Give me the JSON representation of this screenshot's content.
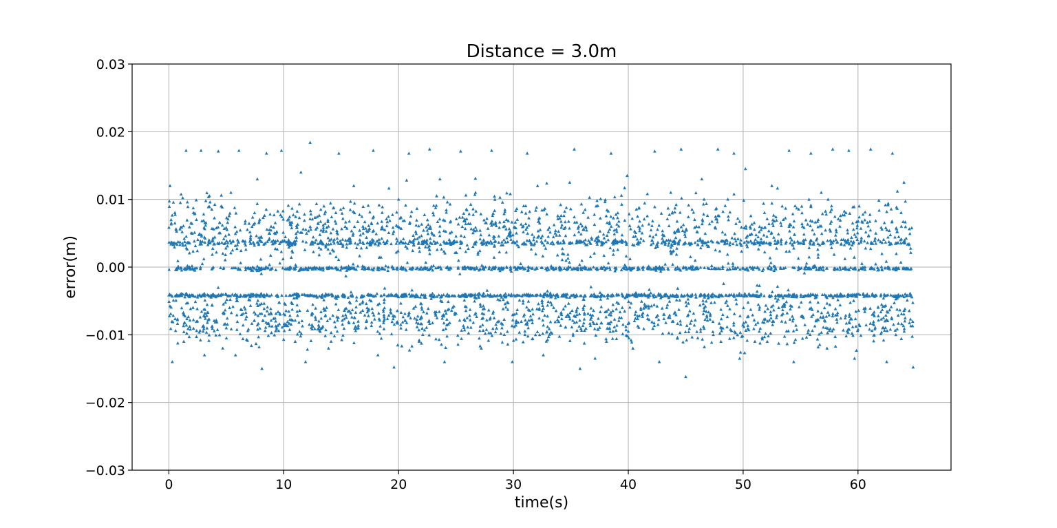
{
  "chart_data": {
    "type": "scatter",
    "title": "Distance = 3.0m",
    "xlabel": "time(s)",
    "ylabel": "error(m)",
    "xlim": [
      -3.2,
      68.1
    ],
    "ylim": [
      -0.03,
      0.03
    ],
    "xticks": [
      0,
      10,
      20,
      30,
      40,
      50,
      60
    ],
    "xtick_labels": [
      "0",
      "10",
      "20",
      "30",
      "40",
      "50",
      "60"
    ],
    "yticks": [
      0.03,
      0.02,
      0.01,
      0.0,
      -0.01,
      -0.02,
      -0.03
    ],
    "ytick_labels": [
      "0.03",
      "0.02",
      "0.01",
      "0.00",
      "−0.01",
      "−0.02",
      "−0.03"
    ],
    "grid": true,
    "marker": "triangle-up",
    "color": "#1f77b4",
    "x_range": [
      0,
      64.8
    ],
    "series": [
      {
        "points": [
          [
            0.1,
            0.012
          ],
          [
            0.3,
            -0.014
          ],
          [
            0.5,
            0.0035
          ],
          [
            0.8,
            -0.0042
          ],
          [
            1.0,
            0.0095
          ],
          [
            1.3,
            -0.011
          ],
          [
            1.5,
            0.0172
          ],
          [
            1.8,
            0.0
          ],
          [
            2.1,
            -0.006
          ],
          [
            2.4,
            0.007
          ],
          [
            2.8,
            0.0172
          ],
          [
            3.1,
            -0.013
          ],
          [
            3.5,
            0.004
          ],
          [
            3.9,
            -0.0043
          ],
          [
            4.3,
            0.0171
          ],
          [
            4.7,
            0.002
          ],
          [
            5.0,
            -0.009
          ],
          [
            5.4,
            0.011
          ],
          [
            5.8,
            -0.013
          ],
          [
            6.1,
            0.0172
          ],
          [
            6.5,
            0.0038
          ],
          [
            6.9,
            -0.0041
          ],
          [
            7.3,
            -0.0005
          ],
          [
            7.7,
            0.013
          ],
          [
            8.1,
            -0.015
          ],
          [
            8.5,
            0.0168
          ],
          [
            8.9,
            0.006
          ],
          [
            9.3,
            -0.008
          ],
          [
            9.8,
            0.0172
          ],
          [
            10.2,
            -0.0042
          ],
          [
            10.6,
            0.0036
          ],
          [
            11.0,
            -0.011
          ],
          [
            11.5,
            0.014
          ],
          [
            11.9,
            -0.014
          ],
          [
            12.3,
            0.0184
          ],
          [
            12.7,
            0.0
          ],
          [
            13.1,
            -0.0043
          ],
          [
            13.5,
            0.009
          ],
          [
            13.9,
            -0.012
          ],
          [
            14.4,
            0.0035
          ],
          [
            14.8,
            0.0168
          ],
          [
            15.2,
            -0.0041
          ],
          [
            15.6,
            -0.0003
          ],
          [
            16.1,
            0.012
          ],
          [
            16.5,
            -0.009
          ],
          [
            16.9,
            0.006
          ],
          [
            17.4,
            -0.0042
          ],
          [
            17.8,
            0.0172
          ],
          [
            18.2,
            -0.013
          ],
          [
            18.7,
            0.0037
          ],
          [
            19.1,
            0.0
          ],
          [
            19.6,
            -0.0148
          ],
          [
            20.0,
            0.01
          ],
          [
            20.4,
            -0.0043
          ],
          [
            20.9,
            0.0168
          ],
          [
            21.3,
            0.0036
          ],
          [
            21.8,
            -0.011
          ],
          [
            22.2,
            -0.0002
          ],
          [
            22.7,
            0.0174
          ],
          [
            23.1,
            -0.0042
          ],
          [
            23.6,
            0.013
          ],
          [
            24.0,
            -0.014
          ],
          [
            24.5,
            0.0035
          ],
          [
            24.9,
            -0.007
          ],
          [
            25.4,
            0.0171
          ],
          [
            25.8,
            0.0
          ],
          [
            26.3,
            -0.0041
          ],
          [
            26.7,
            0.011
          ],
          [
            27.2,
            -0.012
          ],
          [
            27.6,
            0.0036
          ],
          [
            28.1,
            0.0172
          ],
          [
            28.5,
            -0.0043
          ],
          [
            29.0,
            -0.009
          ],
          [
            29.4,
            0.007
          ],
          [
            29.9,
            -0.014
          ],
          [
            30.3,
            0.0038
          ],
          [
            30.8,
            0.0
          ],
          [
            31.2,
            0.0168
          ],
          [
            31.7,
            -0.0042
          ],
          [
            32.1,
            0.012
          ],
          [
            32.6,
            -0.013
          ],
          [
            33.0,
            0.0036
          ],
          [
            33.5,
            -0.006
          ],
          [
            34.0,
            0.0
          ],
          [
            34.4,
            -0.0041
          ],
          [
            34.9,
            0.0125
          ],
          [
            35.3,
            0.0174
          ],
          [
            35.8,
            -0.015
          ],
          [
            36.2,
            0.0035
          ],
          [
            36.7,
            -0.0043
          ],
          [
            37.2,
            0.009
          ],
          [
            37.6,
            -0.0002
          ],
          [
            38.1,
            -0.011
          ],
          [
            38.5,
            0.0168
          ],
          [
            39.0,
            0.0037
          ],
          [
            39.5,
            -0.0042
          ],
          [
            39.9,
            0.0135
          ],
          [
            40.4,
            -0.012
          ],
          [
            40.9,
            0.006
          ],
          [
            41.3,
            0.0
          ],
          [
            41.8,
            -0.0041
          ],
          [
            42.3,
            0.0171
          ],
          [
            42.7,
            -0.014
          ],
          [
            43.2,
            0.0036
          ],
          [
            43.7,
            0.011
          ],
          [
            44.1,
            -0.0043
          ],
          [
            44.6,
            0.0174
          ],
          [
            45.0,
            -0.0162
          ],
          [
            45.5,
            0.0035
          ],
          [
            46.0,
            -0.0002
          ],
          [
            46.4,
            0.013
          ],
          [
            46.9,
            -0.0042
          ],
          [
            47.4,
            -0.01
          ],
          [
            47.8,
            0.0174
          ],
          [
            48.3,
            0.0038
          ],
          [
            48.8,
            -0.0041
          ],
          [
            49.2,
            0.0168
          ],
          [
            49.7,
            -0.0135
          ],
          [
            50.2,
            0.0145
          ],
          [
            50.6,
            0.0
          ],
          [
            51.1,
            -0.0043
          ],
          [
            51.6,
            0.0036
          ],
          [
            52.1,
            -0.011
          ],
          [
            52.5,
            0.012
          ],
          [
            53.0,
            -0.0042
          ],
          [
            53.5,
            0.007
          ],
          [
            54.0,
            0.0172
          ],
          [
            54.4,
            -0.014
          ],
          [
            54.9,
            0.0035
          ],
          [
            55.4,
            -0.0003
          ],
          [
            55.9,
            0.0168
          ],
          [
            56.3,
            -0.0041
          ],
          [
            56.8,
            0.011
          ],
          [
            57.3,
            -0.012
          ],
          [
            57.8,
            0.0174
          ],
          [
            58.2,
            0.0037
          ],
          [
            58.7,
            -0.0043
          ],
          [
            59.2,
            0.0172
          ],
          [
            59.7,
            -0.0135
          ],
          [
            60.1,
            0.009
          ],
          [
            60.6,
            0.0
          ],
          [
            61.1,
            0.0174
          ],
          [
            61.6,
            -0.0042
          ],
          [
            62.1,
            0.0036
          ],
          [
            62.5,
            -0.014
          ],
          [
            63.0,
            0.0168
          ],
          [
            63.5,
            -0.0041
          ],
          [
            64.0,
            0.0125
          ],
          [
            64.4,
            -0.0003
          ],
          [
            64.8,
            -0.0148
          ]
        ]
      }
    ]
  }
}
